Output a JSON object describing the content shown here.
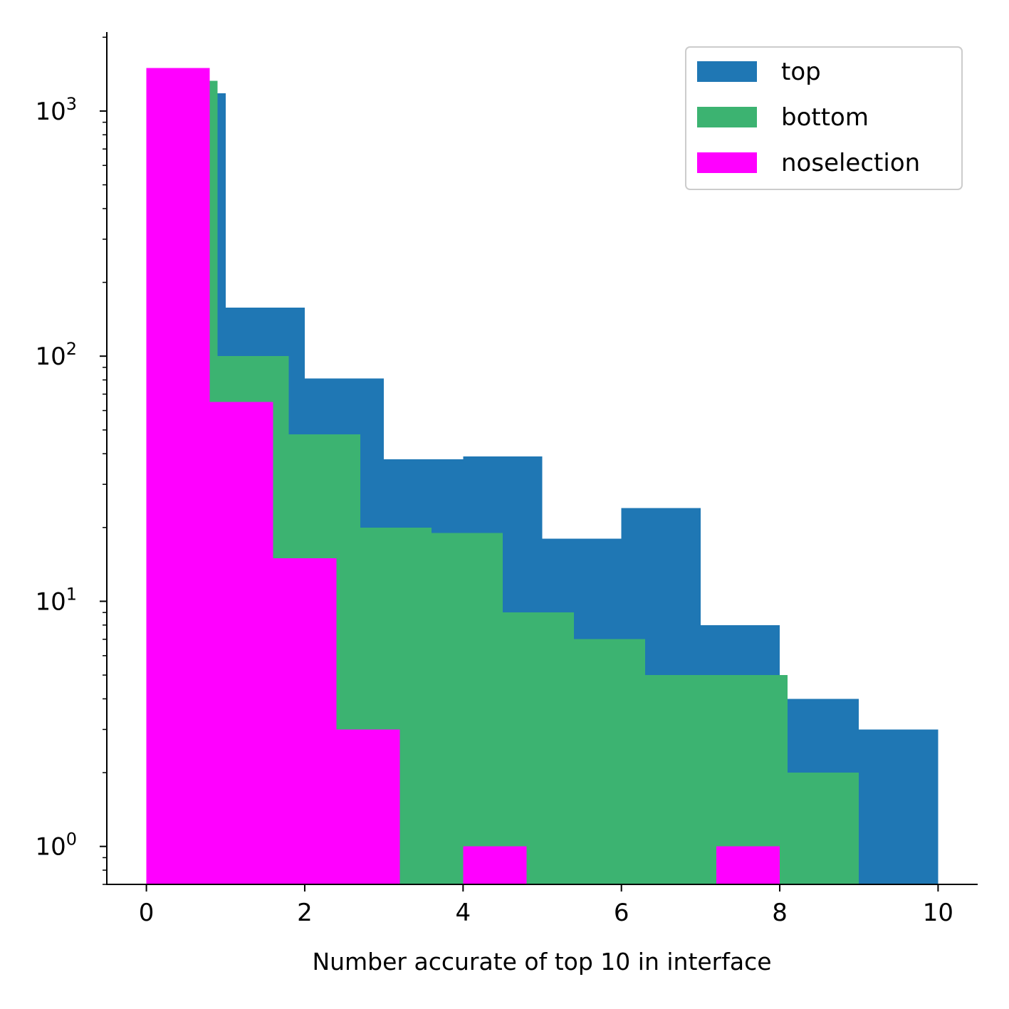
{
  "chart_data": {
    "type": "histogram",
    "title": "",
    "xlabel": "Number accurate of top 10 in interface",
    "ylabel": "",
    "yscale": "log",
    "xlim": [
      -0.5,
      10.5
    ],
    "ylim": [
      0.7,
      2100
    ],
    "xticks": [
      0,
      2,
      4,
      6,
      8,
      10
    ],
    "xtick_labels": [
      "0",
      "2",
      "4",
      "6",
      "8",
      "10"
    ],
    "yticks": [
      1,
      10,
      100,
      1000
    ],
    "ytick_labels": [
      {
        "base": "10",
        "exp": "0"
      },
      {
        "base": "10",
        "exp": "1"
      },
      {
        "base": "10",
        "exp": "2"
      },
      {
        "base": "10",
        "exp": "3"
      }
    ],
    "grid": false,
    "legend_position": "top-right",
    "series": [
      {
        "name": "top",
        "color": "#1f77b4",
        "bin_edges": [
          0,
          1,
          2,
          3,
          4,
          5,
          6,
          7,
          8,
          9,
          10
        ],
        "counts": [
          1180,
          158,
          81,
          38,
          39,
          18,
          24,
          8,
          4,
          3
        ]
      },
      {
        "name": "bottom",
        "color": "#3cb371",
        "bin_edges": [
          0,
          0.9,
          1.8,
          2.7,
          3.6,
          4.5,
          5.4,
          6.3,
          7.2,
          8.1,
          9.0
        ],
        "counts": [
          1330,
          100,
          48,
          20,
          19,
          9,
          7,
          5,
          5,
          2
        ]
      },
      {
        "name": "noselection",
        "color": "#ff00ff",
        "bin_edges": [
          0,
          0.8,
          1.6,
          2.4,
          3.2,
          4.0,
          4.8,
          5.6,
          6.4,
          7.2,
          8.0
        ],
        "counts": [
          1500,
          65,
          15,
          3,
          0,
          1,
          0,
          0,
          0,
          1
        ]
      }
    ]
  }
}
